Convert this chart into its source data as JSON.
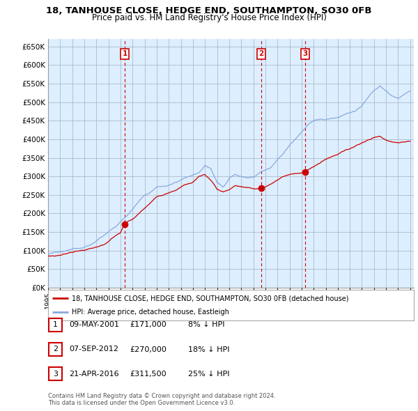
{
  "title1": "18, TANHOUSE CLOSE, HEDGE END, SOUTHAMPTON, SO30 0FB",
  "title2": "Price paid vs. HM Land Registry's House Price Index (HPI)",
  "yticks": [
    0,
    50000,
    100000,
    150000,
    200000,
    250000,
    300000,
    350000,
    400000,
    450000,
    500000,
    550000,
    600000,
    650000
  ],
  "ylim": [
    0,
    670000
  ],
  "legend_line1": "18, TANHOUSE CLOSE, HEDGE END, SOUTHAMPTON, SO30 0FB (detached house)",
  "legend_line2": "HPI: Average price, detached house, Eastleigh",
  "transactions": [
    {
      "num": 1,
      "date": "09-MAY-2001",
      "price": "£171,000",
      "hpi_diff": "8% ↓ HPI",
      "year": 2001.35,
      "price_val": 171000
    },
    {
      "num": 2,
      "date": "07-SEP-2012",
      "price": "£270,000",
      "hpi_diff": "18% ↓ HPI",
      "year": 2012.67,
      "price_val": 270000
    },
    {
      "num": 3,
      "date": "21-APR-2016",
      "price": "£311,500",
      "hpi_diff": "25% ↓ HPI",
      "year": 2016.3,
      "price_val": 311500
    }
  ],
  "vline_color": "#cc0000",
  "price_line_color": "#cc0000",
  "hpi_line_color": "#88aadd",
  "chart_bg": "#ddeeff",
  "fig_bg": "#ffffff",
  "grid_color": "#aabbcc",
  "footer": "Contains HM Land Registry data © Crown copyright and database right 2024.\nThis data is licensed under the Open Government Licence v3.0."
}
